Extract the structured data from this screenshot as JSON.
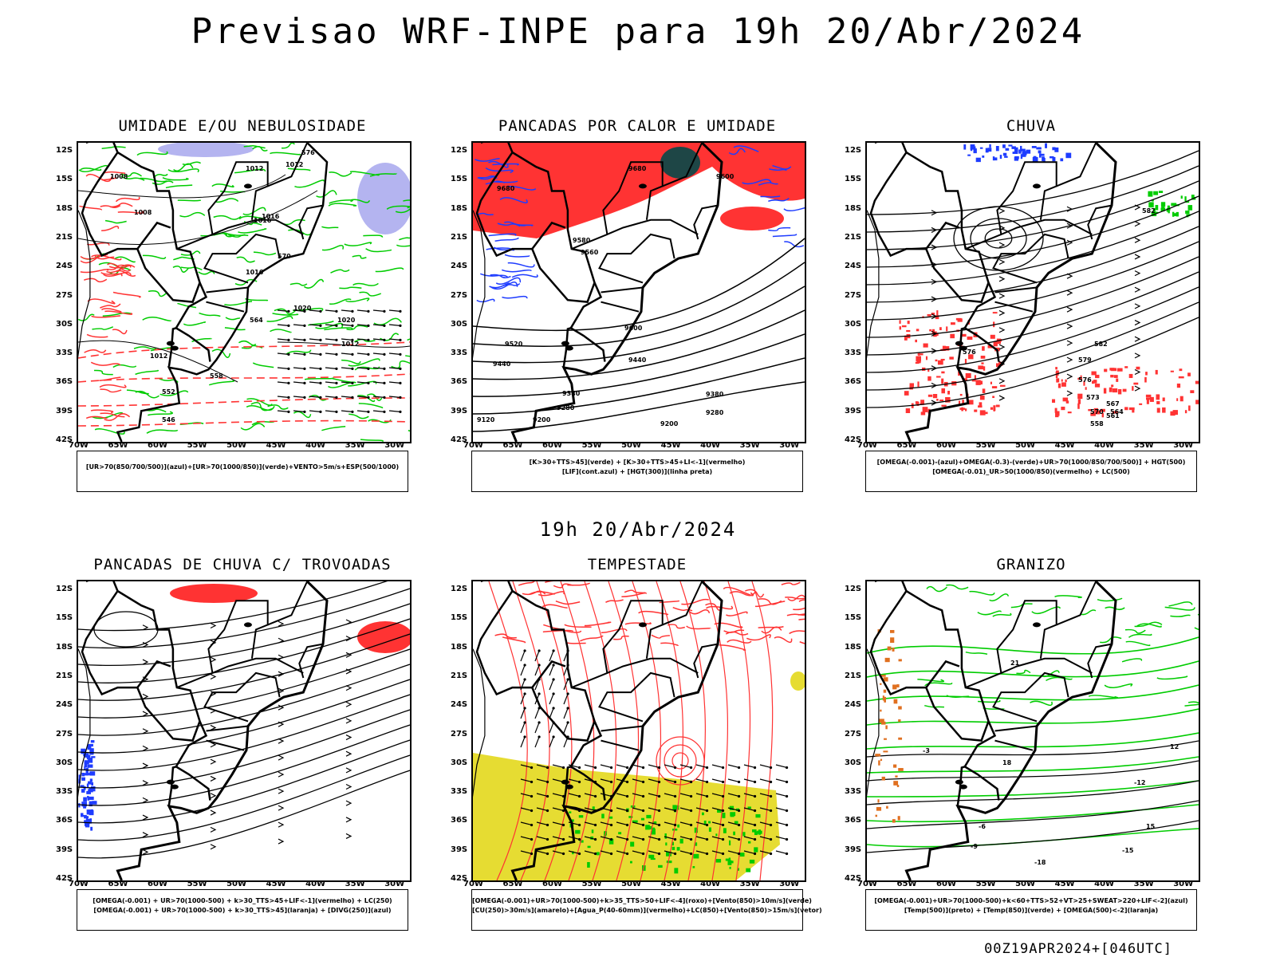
{
  "title": "Previsao WRF-INPE  para 19h 20/Abr/2024",
  "middle_title": "19h 20/Abr/2024",
  "footer": "00Z19APR2024+[046UTC]",
  "axes": {
    "lat_ticks": [
      "12S",
      "15S",
      "18S",
      "21S",
      "24S",
      "27S",
      "30S",
      "33S",
      "36S",
      "39S",
      "42S"
    ],
    "lon_ticks": [
      "70W",
      "65W",
      "60W",
      "55W",
      "50W",
      "45W",
      "40W",
      "35W",
      "30W"
    ]
  },
  "panels": [
    {
      "id": "umidade",
      "title": "UMIDADE E/OU NEBULOSIDADE",
      "legend": [
        "[UR>70(850/700/500)](azul)+[UR>70(1000/850)](verde)+VENTO>5m/s+ESP(500/1000)"
      ],
      "contour_labels": [
        "1008",
        "1012",
        "1016",
        "1020",
        "1012",
        "1008",
        "1016",
        "1012",
        "1016",
        "1020",
        "1012",
        "576",
        "570",
        "564",
        "558",
        "552",
        "546"
      ]
    },
    {
      "id": "pancadas-calor",
      "title": "PANCADAS POR CALOR E UMIDADE",
      "legend": [
        "[K>30+TTS>45](verde) + [K>30+TTS>45+LI<-1](vermelho)",
        "[LIF](cont.azul) + [HGT(300)](linha preta)"
      ],
      "contour_labels": [
        "9680",
        "9680",
        "9600",
        "9580",
        "9560",
        "9520",
        "9440",
        "9440",
        "9380",
        "9380",
        "9280",
        "9280",
        "9200",
        "9200",
        "9120",
        "9600"
      ]
    },
    {
      "id": "chuva",
      "title": "CHUVA",
      "legend": [
        "[OMEGA(-0.001)-(azul)+OMEGA(-0.3)-(verde)+UR>70(1000/850/700/500)] + HGT(500)",
        "[OMEGA(-0.01)_UR>50(1000/850)(vermelho) + LC(500)"
      ],
      "contour_labels": [
        "582",
        "582",
        "579",
        "576",
        "573",
        "570",
        "567",
        "564",
        "561",
        "558",
        "576"
      ]
    },
    {
      "id": "pancadas-trovoadas",
      "title": "PANCADAS DE CHUVA C/ TROVOADAS",
      "legend": [
        "[OMEGA(-0.001) + UR>70(1000-500) + k>30_TTS>45+LIF<-1](vermelho) + LC(250)",
        "[OMEGA(-0.001) + UR>70(1000-500) + k>30_TTS>45](laranja) + [DIVG(250)](azul)"
      ],
      "contour_labels": []
    },
    {
      "id": "tempestade",
      "title": "TEMPESTADE",
      "legend": [
        "[OMEGA(-0.001)+UR>70(1000-500)+k>35_TTS>50+LIF<-4](roxo)+[Vento(850)>10m/s](verde)",
        "[CU(250)>30m/s](amarelo)+[Agua_P(40-60mm)](vermelho)+LC(850)+[Vento(850)>15m/s](vetor)"
      ],
      "contour_labels": []
    },
    {
      "id": "granizo",
      "title": "GRANIZO",
      "legend": [
        "[OMEGA(-0.001)+UR>70(1000-500)+k<60+TTS>52+VT>25+SWEAT>220+LIF<-2](azul)",
        "[Temp(500)](preto) + [Temp(850)](verde) + [OMEGA(500)<-2](laranja)"
      ],
      "contour_labels": [
        "12",
        "15",
        "18",
        "21",
        "-3",
        "-6",
        "-9",
        "-12",
        "-15",
        "-18"
      ]
    }
  ],
  "colors": {
    "black": "#000000",
    "red": "#ff3333",
    "green": "#00cc00",
    "blue": "#1e3cff",
    "lavender": "#b4b4f0",
    "yellow": "#e6dc32",
    "darkteal": "#1e4646",
    "orange": "#e07020"
  }
}
